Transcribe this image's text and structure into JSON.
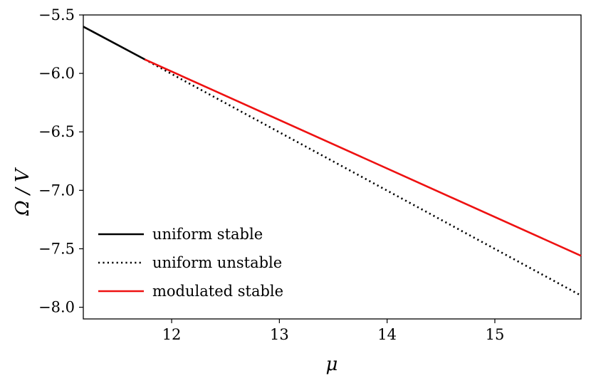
{
  "chart_data": {
    "type": "line",
    "title": "",
    "xlabel": "μ",
    "ylabel": "Ω / V",
    "xlim": [
      11.18,
      15.8
    ],
    "ylim": [
      -8.1,
      -5.5
    ],
    "xticks": [
      12,
      13,
      14,
      15
    ],
    "yticks": [
      -5.5,
      -6.0,
      -6.5,
      -7.0,
      -7.5,
      -8.0
    ],
    "xtick_labels": [
      "12",
      "13",
      "14",
      "15"
    ],
    "ytick_labels": [
      "−5.5",
      "−6.0",
      "−6.5",
      "−7.0",
      "−7.5",
      "−8.0"
    ],
    "grid": false,
    "legend_position": "lower-left",
    "series": [
      {
        "name": "uniform stable",
        "color": "#000000",
        "style": "solid",
        "points": [
          [
            11.18,
            -5.6
          ],
          [
            11.75,
            -5.88
          ]
        ]
      },
      {
        "name": "uniform unstable",
        "color": "#000000",
        "style": "dotted",
        "points": [
          [
            11.75,
            -5.88
          ],
          [
            15.8,
            -7.9
          ]
        ]
      },
      {
        "name": "modulated stable",
        "color": "#ee1111",
        "style": "solid",
        "points": [
          [
            11.75,
            -5.88
          ],
          [
            15.8,
            -7.56
          ]
        ]
      }
    ]
  }
}
